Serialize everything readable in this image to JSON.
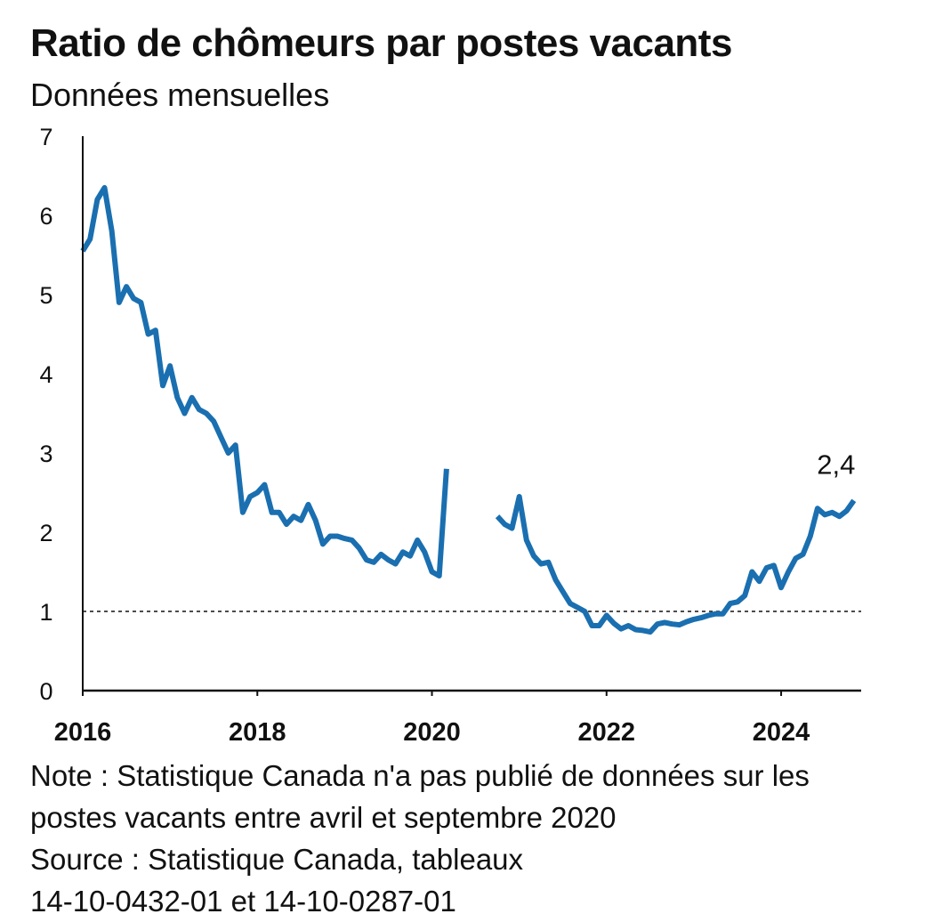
{
  "chart_data": {
    "type": "line",
    "title": "Ratio de chômeurs par postes vacants",
    "subtitle": "Données mensuelles",
    "xlabel": "",
    "ylabel": "",
    "ylim": [
      0,
      7
    ],
    "xlim": [
      "2016-01",
      "2024-12"
    ],
    "y_ticks": [
      "0",
      "1",
      "2",
      "3",
      "4",
      "5",
      "6",
      "7"
    ],
    "x_ticks": [
      "2016",
      "2018",
      "2020",
      "2022",
      "2024"
    ],
    "reference_line": {
      "y": 1,
      "style": "dashed"
    },
    "end_label": "2,4",
    "line_color": "#1a6fb0",
    "grid": false,
    "series": [
      {
        "name": "",
        "points": [
          [
            "2016-01",
            5.55
          ],
          [
            "2016-02",
            5.7
          ],
          [
            "2016-03",
            6.2
          ],
          [
            "2016-04",
            6.35
          ],
          [
            "2016-05",
            5.8
          ],
          [
            "2016-06",
            4.9
          ],
          [
            "2016-07",
            5.1
          ],
          [
            "2016-08",
            4.95
          ],
          [
            "2016-09",
            4.9
          ],
          [
            "2016-10",
            4.5
          ],
          [
            "2016-11",
            4.55
          ],
          [
            "2016-12",
            3.85
          ],
          [
            "2017-01",
            4.1
          ],
          [
            "2017-02",
            3.7
          ],
          [
            "2017-03",
            3.5
          ],
          [
            "2017-04",
            3.7
          ],
          [
            "2017-05",
            3.55
          ],
          [
            "2017-06",
            3.5
          ],
          [
            "2017-07",
            3.4
          ],
          [
            "2017-08",
            3.2
          ],
          [
            "2017-09",
            3.0
          ],
          [
            "2017-10",
            3.1
          ],
          [
            "2017-11",
            2.25
          ],
          [
            "2017-12",
            2.45
          ],
          [
            "2018-01",
            2.5
          ],
          [
            "2018-02",
            2.6
          ],
          [
            "2018-03",
            2.25
          ],
          [
            "2018-04",
            2.25
          ],
          [
            "2018-05",
            2.1
          ],
          [
            "2018-06",
            2.2
          ],
          [
            "2018-07",
            2.15
          ],
          [
            "2018-08",
            2.35
          ],
          [
            "2018-09",
            2.15
          ],
          [
            "2018-10",
            1.85
          ],
          [
            "2018-11",
            1.95
          ],
          [
            "2018-12",
            1.95
          ],
          [
            "2019-01",
            1.92
          ],
          [
            "2019-02",
            1.9
          ],
          [
            "2019-03",
            1.8
          ],
          [
            "2019-04",
            1.65
          ],
          [
            "2019-05",
            1.62
          ],
          [
            "2019-06",
            1.72
          ],
          [
            "2019-07",
            1.65
          ],
          [
            "2019-08",
            1.6
          ],
          [
            "2019-09",
            1.75
          ],
          [
            "2019-10",
            1.7
          ],
          [
            "2019-11",
            1.9
          ],
          [
            "2019-12",
            1.75
          ],
          [
            "2020-01",
            1.5
          ],
          [
            "2020-02",
            1.45
          ],
          [
            "2020-03",
            2.8
          ]
        ]
      },
      {
        "name": "",
        "points": [
          [
            "2020-10",
            2.2
          ],
          [
            "2020-11",
            2.1
          ],
          [
            "2020-12",
            2.05
          ],
          [
            "2021-01",
            2.45
          ],
          [
            "2021-02",
            1.9
          ],
          [
            "2021-03",
            1.7
          ],
          [
            "2021-04",
            1.6
          ],
          [
            "2021-05",
            1.62
          ],
          [
            "2021-06",
            1.4
          ],
          [
            "2021-07",
            1.25
          ],
          [
            "2021-08",
            1.1
          ],
          [
            "2021-09",
            1.05
          ],
          [
            "2021-10",
            1.0
          ],
          [
            "2021-11",
            0.82
          ],
          [
            "2021-12",
            0.82
          ],
          [
            "2022-01",
            0.95
          ],
          [
            "2022-02",
            0.85
          ],
          [
            "2022-03",
            0.78
          ],
          [
            "2022-04",
            0.82
          ],
          [
            "2022-05",
            0.77
          ],
          [
            "2022-06",
            0.76
          ],
          [
            "2022-07",
            0.74
          ],
          [
            "2022-08",
            0.84
          ],
          [
            "2022-09",
            0.86
          ],
          [
            "2022-10",
            0.84
          ],
          [
            "2022-11",
            0.83
          ],
          [
            "2022-12",
            0.87
          ],
          [
            "2023-01",
            0.9
          ],
          [
            "2023-02",
            0.92
          ],
          [
            "2023-03",
            0.95
          ],
          [
            "2023-04",
            0.97
          ],
          [
            "2023-05",
            0.97
          ],
          [
            "2023-06",
            1.1
          ],
          [
            "2023-07",
            1.12
          ],
          [
            "2023-08",
            1.2
          ],
          [
            "2023-09",
            1.5
          ],
          [
            "2023-10",
            1.38
          ],
          [
            "2023-11",
            1.55
          ],
          [
            "2023-12",
            1.58
          ],
          [
            "2024-01",
            1.3
          ],
          [
            "2024-02",
            1.5
          ],
          [
            "2024-03",
            1.67
          ],
          [
            "2024-04",
            1.72
          ],
          [
            "2024-05",
            1.95
          ],
          [
            "2024-06",
            2.3
          ],
          [
            "2024-07",
            2.22
          ],
          [
            "2024-08",
            2.25
          ],
          [
            "2024-09",
            2.2
          ],
          [
            "2024-10",
            2.27
          ],
          [
            "2024-11",
            2.4
          ]
        ]
      }
    ]
  },
  "note_lines": [
    "Note : Statistique Canada n'a pas publié de données sur les",
    "postes vacants entre avril et septembre 2020"
  ],
  "source_lines": [
    "Source : Statistique Canada, tableaux",
    "14-10-0432-01 et 14-10-0287-01"
  ]
}
